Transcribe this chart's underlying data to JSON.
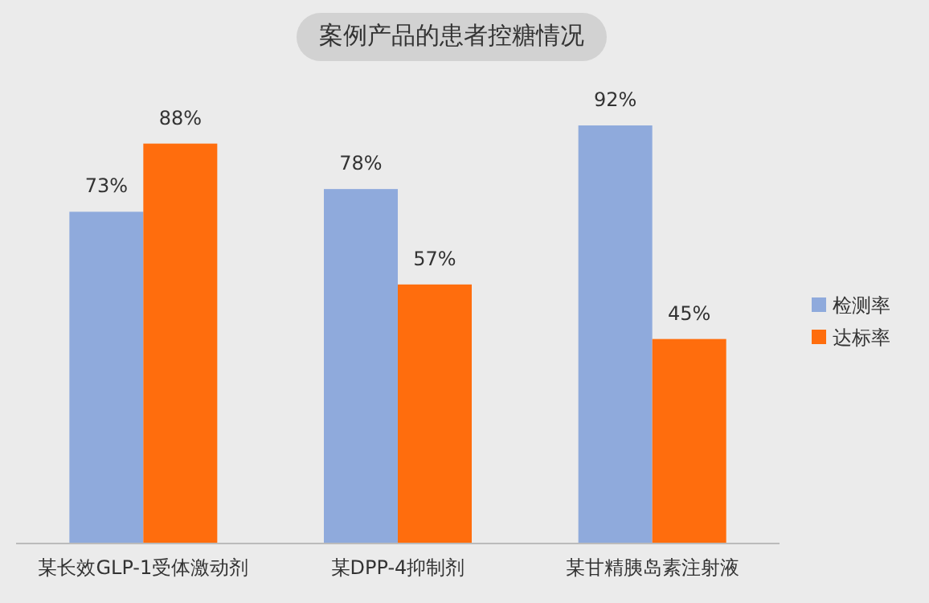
{
  "chart_data": {
    "type": "bar",
    "title": "案例产品的患者控糖情况",
    "categories": [
      "某长效GLP-1受体激动剂",
      "某DPP-4抑制剂",
      "某甘精胰岛素注射液"
    ],
    "series": [
      {
        "name": "检测率",
        "color": "#8faadc",
        "values": [
          73,
          78,
          92
        ],
        "value_labels": [
          "73%",
          "78%",
          "92%"
        ]
      },
      {
        "name": "达标率",
        "color": "#ff6d0d",
        "values": [
          88,
          57,
          45
        ],
        "value_labels": [
          "88%",
          "57%",
          "45%"
        ]
      }
    ],
    "legend": "right",
    "grid": false
  }
}
